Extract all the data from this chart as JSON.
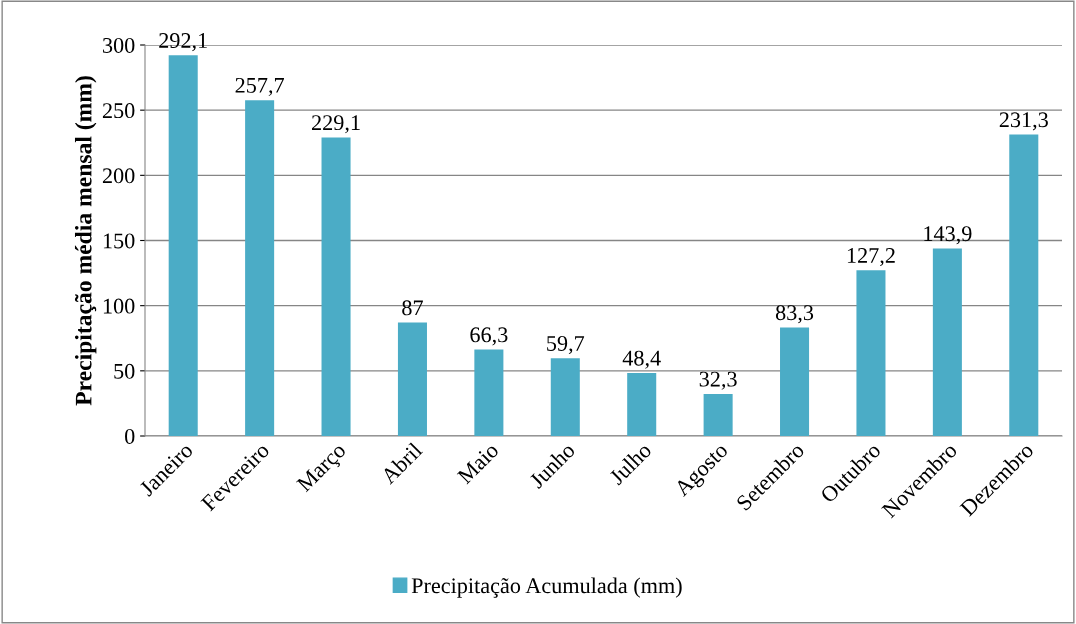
{
  "chart_data": {
    "type": "bar",
    "ylabel": "Precipitação média mensal (mm)",
    "categories": [
      "Janeiro",
      "Fevereiro",
      "Março",
      "Abril",
      "Maio",
      "Junho",
      "Julho",
      "Agosto",
      "Setembro",
      "Outubro",
      "Novembro",
      "Dezembro"
    ],
    "series": [
      {
        "name": "Precipitação Acumulada (mm)",
        "color": "#4bacc6",
        "values": [
          292.1,
          257.7,
          229.1,
          87,
          66.3,
          59.7,
          48.4,
          32.3,
          83.3,
          127.2,
          143.9,
          231.3
        ],
        "value_labels": [
          "292,1",
          "257,7",
          "229,1",
          "87",
          "66,3",
          "59,7",
          "48,4",
          "32,3",
          "83,3",
          "127,2",
          "143,9",
          "231,3"
        ]
      }
    ],
    "ylim": [
      0,
      300
    ],
    "yticks": [
      0,
      50,
      100,
      150,
      200,
      250,
      300
    ],
    "grid": "y",
    "legend": "bottom"
  }
}
